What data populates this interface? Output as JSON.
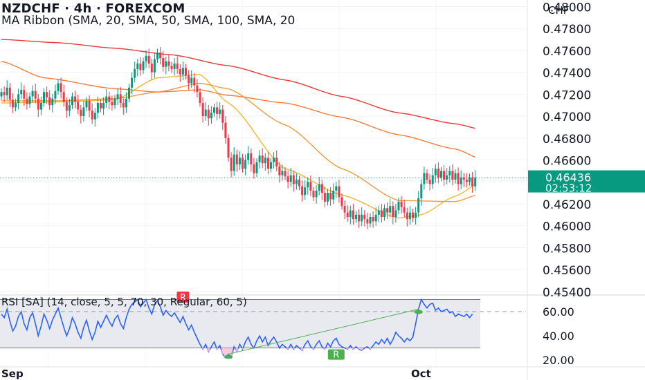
{
  "header": {
    "title": "NZDCHF · 4h · FOREXCOM",
    "indicator": "MA Ribbon (SMA, 20, SMA, 50, SMA, 100, SMA, 20",
    "currency": "CHF"
  },
  "price_badge": {
    "price": "0.46436",
    "countdown": "02:53:12",
    "color": "#089981"
  },
  "rsi_panel": {
    "title": "RSI [SA] (14, close, 5, 5, 70, 30, Regular, 60, 5)",
    "bear_label": "R",
    "bull_label": "R",
    "bear_color": "#f23645",
    "bull_color": "#4caf50",
    "line_color": "#2962ff"
  },
  "colors": {
    "up": "#089981",
    "down": "#f23645",
    "sma20": "#f7b52c",
    "sma50": "#f09a3e",
    "sma100": "#f57c3a",
    "sma200": "#e53935"
  },
  "chart_data": [
    {
      "type": "candlestick",
      "symbol": "NZDCHF",
      "timeframe": "4h",
      "exchange": "FOREXCOM",
      "y_axis": {
        "ticks": [
          "0.48000",
          "0.47800",
          "0.47600",
          "0.47400",
          "0.47200",
          "0.47000",
          "0.46800",
          "0.46600",
          "0.46400",
          "0.46200",
          "0.46000",
          "0.45800",
          "0.45600",
          "0.45400"
        ],
        "ylim": [
          0.4538,
          0.4806
        ]
      },
      "x_axis": {
        "labels": [
          "Sep",
          "Oct"
        ]
      },
      "last_price": 0.46436,
      "closes": [
        0.4722,
        0.4719,
        0.4726,
        0.4715,
        0.4708,
        0.4712,
        0.472,
        0.4724,
        0.4716,
        0.4711,
        0.4718,
        0.4723,
        0.4716,
        0.4706,
        0.4712,
        0.4722,
        0.4717,
        0.471,
        0.4716,
        0.4723,
        0.473,
        0.4722,
        0.4713,
        0.4705,
        0.471,
        0.4718,
        0.4713,
        0.4706,
        0.47,
        0.4708,
        0.4714,
        0.4705,
        0.4697,
        0.4703,
        0.4712,
        0.4707,
        0.4712,
        0.4718,
        0.4713,
        0.471,
        0.4716,
        0.472,
        0.4712,
        0.4708,
        0.4716,
        0.4726,
        0.4735,
        0.4743,
        0.4748,
        0.4742,
        0.475,
        0.4755,
        0.4748,
        0.474,
        0.4752,
        0.4758,
        0.4753,
        0.4745,
        0.475,
        0.4746,
        0.4743,
        0.4748,
        0.4743,
        0.4738,
        0.4744,
        0.4737,
        0.473,
        0.4735,
        0.4728,
        0.4722,
        0.4712,
        0.47,
        0.4706,
        0.4698,
        0.4703,
        0.4708,
        0.4702,
        0.4706,
        0.4694,
        0.468,
        0.4662,
        0.465,
        0.4665,
        0.4656,
        0.4662,
        0.4652,
        0.466,
        0.4666,
        0.4656,
        0.4648,
        0.4658,
        0.4664,
        0.4657,
        0.4662,
        0.4652,
        0.4658,
        0.4662,
        0.4654,
        0.4646,
        0.465,
        0.4645,
        0.464,
        0.4646,
        0.4638,
        0.4642,
        0.4636,
        0.4628,
        0.4635,
        0.464,
        0.4632,
        0.4626,
        0.4632,
        0.4638,
        0.463,
        0.4622,
        0.463,
        0.4624,
        0.4632,
        0.4636,
        0.4626,
        0.4618,
        0.4612,
        0.4608,
        0.4614,
        0.4606,
        0.461,
        0.4604,
        0.461,
        0.4606,
        0.4602,
        0.4608,
        0.4604,
        0.461,
        0.4614,
        0.4608,
        0.4616,
        0.4612,
        0.4618,
        0.4608,
        0.4614,
        0.4622,
        0.4617,
        0.4612,
        0.4606,
        0.4612,
        0.4607,
        0.4612,
        0.4625,
        0.4638,
        0.4648,
        0.4642,
        0.4638,
        0.4646,
        0.4652,
        0.4644,
        0.465,
        0.4642,
        0.4646,
        0.465,
        0.4642,
        0.4648,
        0.4638,
        0.4644,
        0.4642,
        0.464,
        0.4644,
        0.4636,
        0.4644
      ],
      "moving_averages": [
        {
          "name": "SMA 20",
          "color": "#f7b52c",
          "x": [
            0,
            20,
            40,
            55,
            70,
            80,
            100,
            120,
            140,
            148,
            160,
            169
          ],
          "values": [
            0.4712,
            0.4713,
            0.4715,
            0.4735,
            0.4738,
            0.4712,
            0.4652,
            0.4628,
            0.4607,
            0.461,
            0.4627,
            0.464
          ]
        },
        {
          "name": "SMA 50",
          "color": "#f09a3e",
          "x": [
            0,
            20,
            40,
            55,
            70,
            80,
            100,
            120,
            140,
            160,
            169
          ],
          "values": [
            0.4714,
            0.4714,
            0.4716,
            0.4722,
            0.473,
            0.4725,
            0.4692,
            0.4652,
            0.4623,
            0.4622,
            0.4629
          ]
        },
        {
          "name": "SMA 100",
          "color": "#f57c3a",
          "x": [
            0,
            15,
            40,
            55,
            70,
            80,
            100,
            120,
            140,
            160,
            169
          ],
          "values": [
            0.475,
            0.4735,
            0.4725,
            0.4722,
            0.4724,
            0.4719,
            0.4712,
            0.4699,
            0.4683,
            0.467,
            0.4661
          ]
        },
        {
          "name": "SMA 200",
          "color": "#e53935",
          "x": [
            0,
            20,
            40,
            60,
            80,
            100,
            120,
            140,
            160,
            169
          ],
          "values": [
            0.477,
            0.4767,
            0.4762,
            0.4756,
            0.4746,
            0.4733,
            0.4718,
            0.4703,
            0.4693,
            0.4688
          ]
        }
      ]
    },
    {
      "type": "line",
      "name": "RSI",
      "y_axis": {
        "ticks": [
          "60.00",
          "40.00",
          "20.00"
        ],
        "ylim": [
          15,
          72
        ]
      },
      "levels": [
        70,
        30,
        60
      ],
      "values": [
        58,
        55,
        62,
        52,
        44,
        48,
        56,
        60,
        50,
        45,
        55,
        59,
        50,
        40,
        48,
        58,
        53,
        46,
        53,
        58,
        63,
        55,
        47,
        40,
        46,
        55,
        50,
        43,
        38,
        47,
        53,
        44,
        37,
        43,
        52,
        47,
        52,
        57,
        52,
        48,
        54,
        57,
        50,
        46,
        55,
        62,
        66,
        68,
        70,
        64,
        67,
        70,
        63,
        58,
        66,
        69,
        64,
        57,
        61,
        58,
        56,
        59,
        55,
        51,
        56,
        50,
        45,
        49,
        43,
        38,
        33,
        29,
        33,
        27,
        31,
        35,
        29,
        32,
        25,
        22,
        25,
        22,
        31,
        27,
        33,
        29,
        35,
        39,
        33,
        30,
        36,
        40,
        35,
        39,
        32,
        36,
        39,
        35,
        30,
        33,
        31,
        29,
        33,
        29,
        32,
        30,
        28,
        33,
        36,
        31,
        29,
        33,
        36,
        31,
        29,
        34,
        31,
        36,
        38,
        33,
        31,
        30,
        29,
        32,
        29,
        31,
        29,
        28,
        30,
        31,
        29,
        32,
        35,
        33,
        37,
        34,
        38,
        33,
        37,
        43,
        40,
        38,
        35,
        38,
        36,
        39,
        50,
        62,
        70,
        66,
        63,
        66,
        67,
        61,
        63,
        60,
        61,
        62,
        59,
        60,
        56,
        58,
        57,
        56,
        58,
        55,
        58
      ],
      "pivot_low_markers": [
        80,
        147
      ],
      "bear_label_at": 64,
      "bull_label_at": 118
    }
  ]
}
